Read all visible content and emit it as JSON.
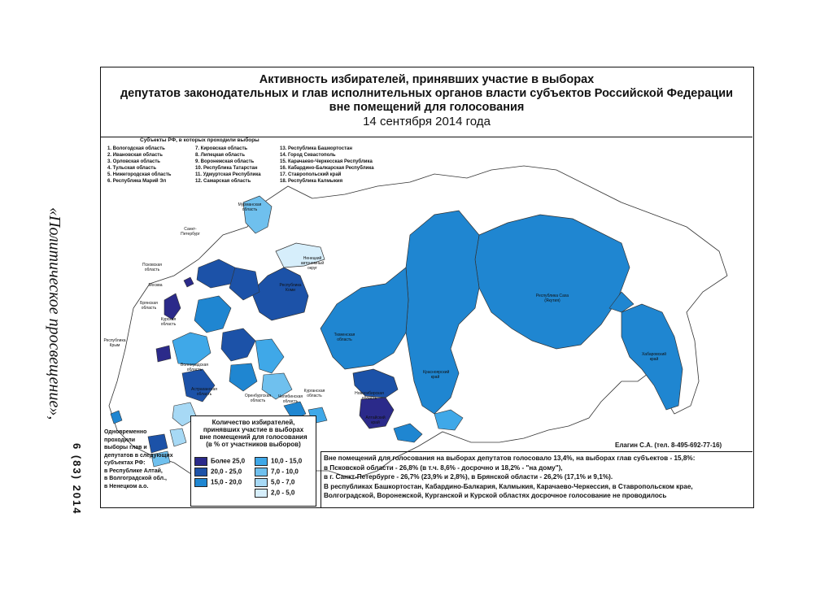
{
  "journal": "«Политическое просвещение»,",
  "issue": "6 (83) 2014",
  "title": {
    "line1": "Активность избирателей, принявших участие в выборах",
    "line2": "депутатов законодательных и глав исполнительных органов власти субъектов Российской Федерации",
    "line3": "вне помещений для голосования",
    "line4": "14 сентября 2014 года"
  },
  "regions_title": "Субъекты РФ, в которых проходили выборы",
  "regions": [
    "1. Вологодская область",
    "2. Ивановская область",
    "3. Орловская область",
    "4. Тульская область",
    "5. Нижегородская область",
    "6. Республика Марий Эл",
    "7. Кировская область",
    "8. Липецкая область",
    "9. Воронежская область",
    "10. Республика Татарстан",
    "11. Удмуртская Республика",
    "12. Самарская область",
    "13. Республика Башкортостан",
    "14. Город Севастополь",
    "15. Карачаево-Черкесская Республика",
    "16. Кабардино-Балкарская Республика",
    "17. Ставропольский край",
    "18. Республика Калмыкия"
  ],
  "map_labels": {
    "spb": "Санкт-Петербург",
    "pskov": "Псковская область",
    "moscow": "Москва",
    "bryansk": "Брянская область",
    "kursk": "Курская область",
    "crimea": "Республика Крым",
    "volgograd": "Волгоградская область",
    "astrakhan": "Астраханская область",
    "orenburg": "Оренбургская область",
    "chelyabinsk": "Челябинская область",
    "kurgan": "Курганская область",
    "murmansk": "Мурманская область",
    "nenets": "Ненецкий автономный округ",
    "komi": "Республика Коми",
    "tyumen": "Тюменская область",
    "novosibirsk": "Новосибирская область",
    "altai": "Алтайский край",
    "krasnoyarsk": "Красноярский край",
    "yakutia": "Республика Саха (Якутия)",
    "khabarovsk": "Хабаровский край"
  },
  "legend": {
    "title": [
      "Количество избирателей,",
      "принявших участие в выборах",
      "вне помещений для голосования",
      "(в % от участников выборов)"
    ],
    "items": [
      {
        "label": "Более 25,0",
        "color": "#2b2a8a"
      },
      {
        "label": "20,0 - 25,0",
        "color": "#1c52a8"
      },
      {
        "label": "15,0 - 20,0",
        "color": "#1f86d1"
      },
      {
        "label": "10,0 - 15,0",
        "color": "#3fa8e8"
      },
      {
        "label": "7,0 - 10,0",
        "color": "#6fc0ee"
      },
      {
        "label": "5,0 - 7,0",
        "color": "#a7d9f5"
      },
      {
        "label": "2,0 - 5,0",
        "color": "#d6eefb"
      }
    ]
  },
  "note": [
    "Одновременно",
    "проходили",
    "выборы глав и",
    "депутатов в следующих",
    "субъектах РФ:",
    "в Республике Алтай,",
    "в Волгоградской обл.,",
    "в Ненецком а.о."
  ],
  "author": "Елагин С.А. (тел. 8-495-692-77-16)",
  "info": [
    "Вне помещений для голосования на выборах депутатов голосовало 13,4%, на выборах глав субъектов - 15,8%:",
    "в Псковской области - 26,8% (в т.ч. 8,6% - досрочно и 18,2% - \"на дому\"),",
    "в г. Санкт-Петербурге - 26,7% (23,9% и 2,8%), в Брянской области - 26,2% (17,1% и 9,1%).",
    "В республиках Башкортостан, Кабардино-Балкария, Калмыкия, Карачаево-Черкессия, в Ставропольском крае,",
    "Волгоградской, Воронежской, Курганской и Курской областях досрочное голосование не проводилось"
  ],
  "colors": {
    "c1": "#2b2a8a",
    "c2": "#1c52a8",
    "c3": "#1f86d1",
    "c4": "#3fa8e8",
    "c5": "#6fc0ee",
    "c6": "#a7d9f5",
    "c7": "#d6eefb",
    "none": "#ffffff"
  }
}
